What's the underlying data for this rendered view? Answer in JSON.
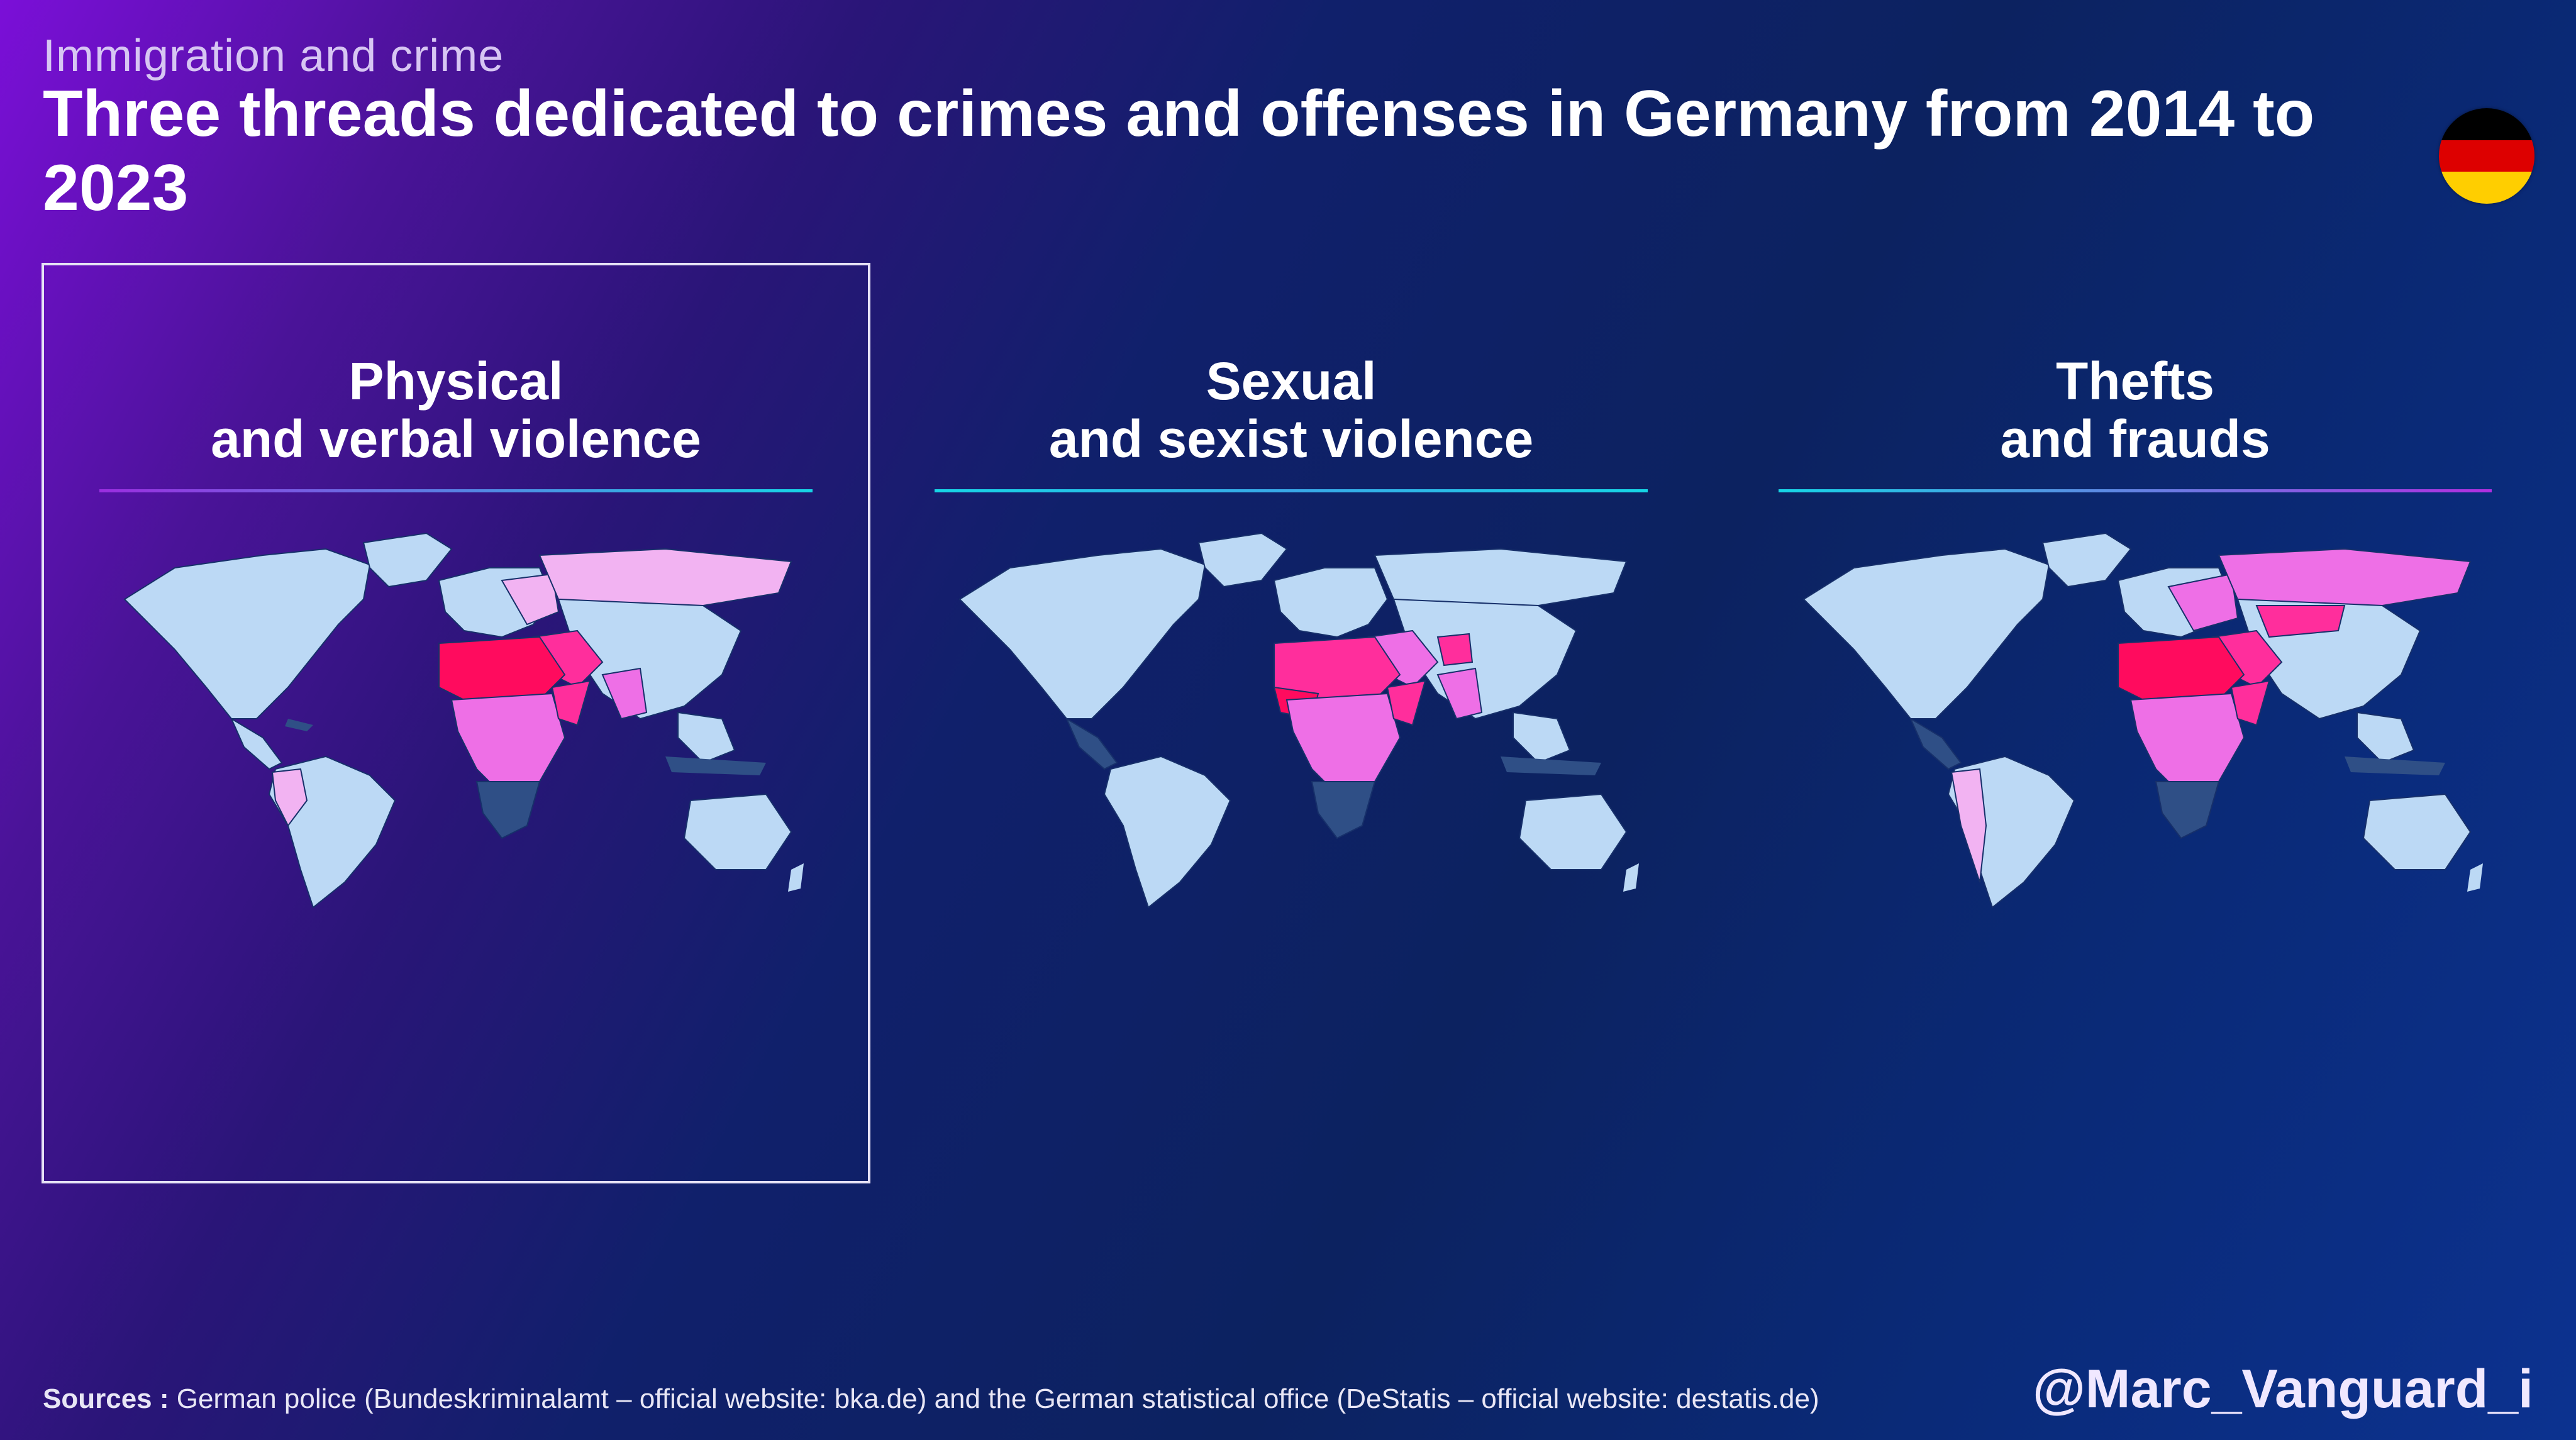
{
  "header": {
    "kicker": "Immigration and crime",
    "title": "Three threads dedicated to crimes and offenses in Germany from 2014 to 2023"
  },
  "flag": {
    "name": "germany-flag",
    "colors": [
      "#000000",
      "#dd0000",
      "#ffce00"
    ]
  },
  "panels": [
    {
      "title_line1": "Physical",
      "title_line2": "and verbal violence",
      "selected": true
    },
    {
      "title_line1": "Sexual",
      "title_line2": "and sexist violence",
      "selected": false
    },
    {
      "title_line1": "Thefts",
      "title_line2": "and frauds",
      "selected": false
    }
  ],
  "map_colors": {
    "land_base": "#bcd9f5",
    "dark": "#2f4f86",
    "light_pink": "#f2b3f2",
    "mid_pink": "#ee6fe6",
    "hot_pink": "#ff2e9c",
    "crimson": "#ff0b5e"
  },
  "footer": {
    "sources_label": "Sources :",
    "sources_text": " German police (Bundeskriminalamt – official website: bka.de) and the German statistical office (DeStatis – official website: destatis.de)",
    "handle": "@Marc_Vanguard_i"
  }
}
